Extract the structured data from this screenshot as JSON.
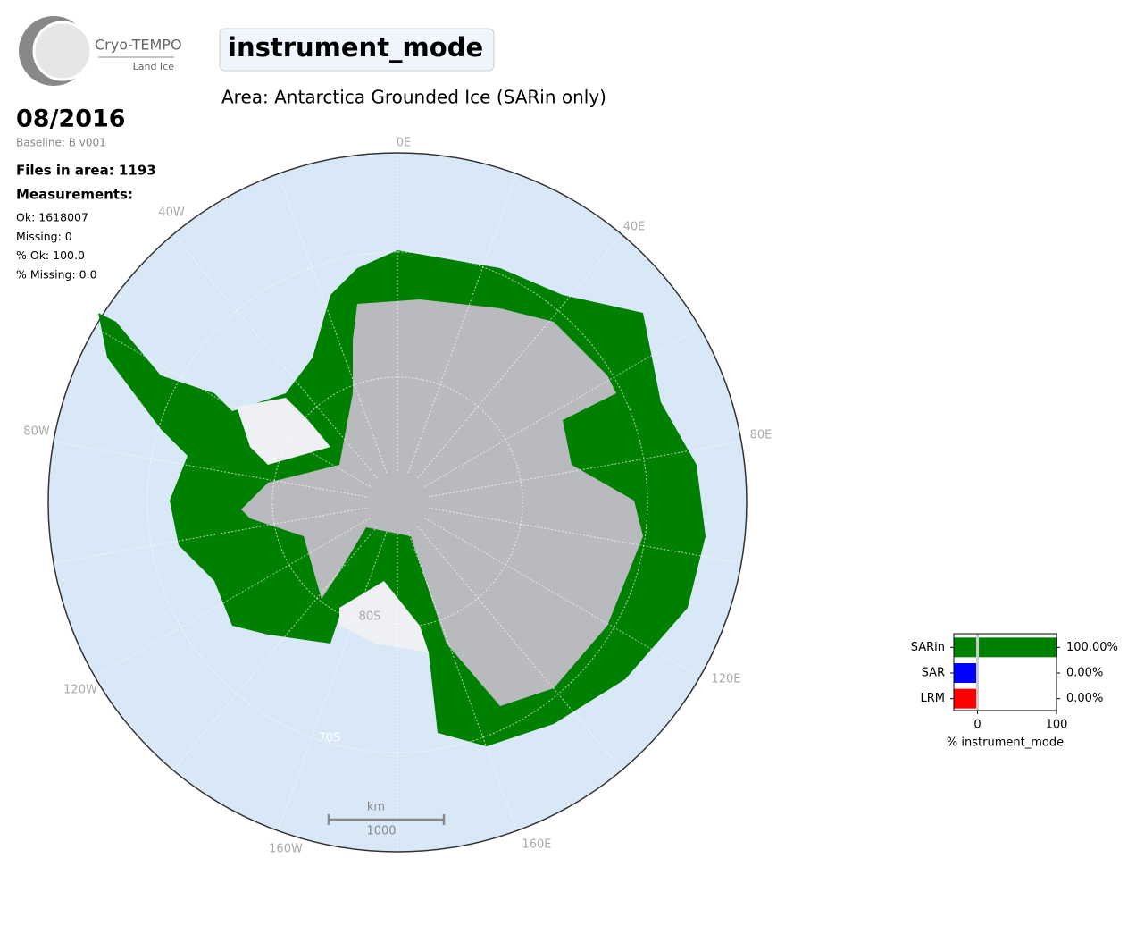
{
  "logo": {
    "name": "Cryo-TEMPO",
    "subtitle": "Land Ice"
  },
  "header": {
    "title": "instrument_mode",
    "area": "Area: Antarctica Grounded Ice (SARin only)"
  },
  "info": {
    "date": "08/2016",
    "baseline": "Baseline: B v001",
    "files": "Files in area: 1193",
    "measurements_heading": "Measurements:",
    "stats": [
      "Ok: 1618007",
      "Missing: 0",
      "% Ok: 100.0",
      "% Missing: 0.0"
    ]
  },
  "map": {
    "meridian_labels": [
      "0E",
      "40E",
      "80E",
      "120E",
      "160E",
      "160W",
      "120W",
      "80W",
      "40W"
    ],
    "parallel_labels": [
      "80S",
      "70S"
    ],
    "scale_bar": {
      "unit": "km",
      "label": "1000"
    }
  },
  "chart_data": {
    "type": "bar",
    "orientation": "horizontal",
    "categories": [
      "SARin",
      "SAR",
      "LRM"
    ],
    "values": [
      100,
      0,
      0
    ],
    "value_labels": [
      "100.00%",
      "0.00%",
      "0.00%"
    ],
    "colors": [
      "#008000",
      "#0000ff",
      "#ff0000"
    ],
    "xlabel": "% instrument_mode",
    "xlim": [
      -30,
      100
    ],
    "xticks": [
      0,
      100
    ]
  }
}
